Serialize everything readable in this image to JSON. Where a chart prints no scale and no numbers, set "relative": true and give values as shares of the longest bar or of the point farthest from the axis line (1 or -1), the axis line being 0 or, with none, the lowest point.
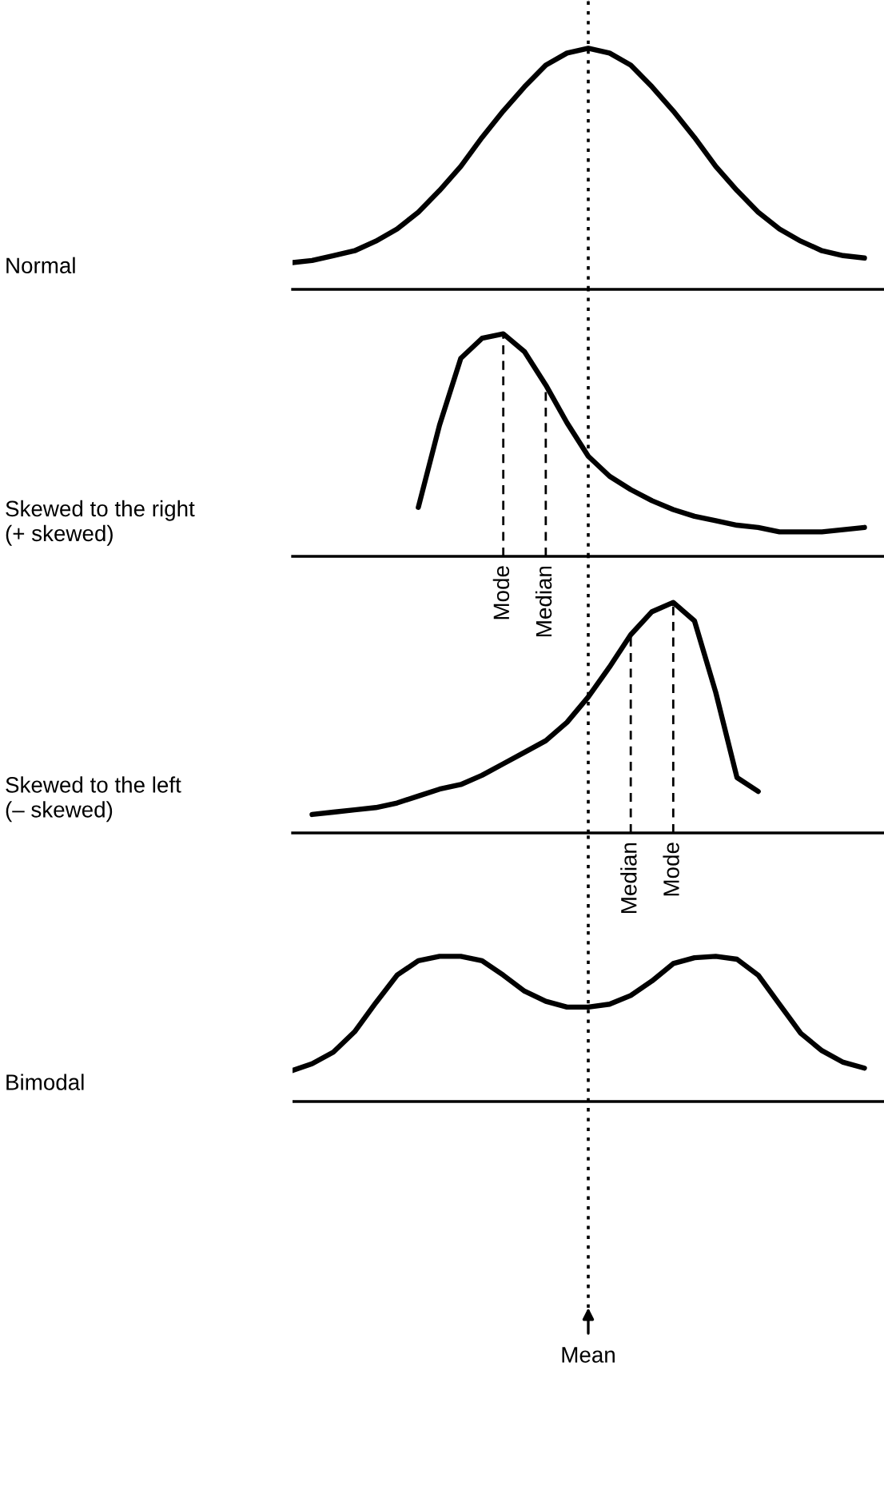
{
  "chart_data": [
    {
      "type": "line",
      "ylabel": "Normal",
      "relative": true,
      "line_style": "solid",
      "color": "#000000",
      "categories": [
        null,
        null,
        null,
        null,
        null,
        null,
        null,
        null,
        null,
        null,
        null,
        null,
        null,
        null,
        null,
        null,
        null,
        null,
        null,
        null,
        null,
        null,
        null,
        null,
        null,
        null,
        null,
        null
      ],
      "values": [
        0.11,
        0.12,
        0.14,
        0.16,
        0.2,
        0.25,
        0.32,
        0.41,
        0.51,
        0.63,
        0.74,
        0.84,
        0.93,
        0.98,
        1.0,
        0.98,
        0.93,
        0.84,
        0.74,
        0.63,
        0.51,
        0.41,
        0.32,
        0.25,
        0.2,
        0.16,
        0.14,
        0.13
      ]
    },
    {
      "type": "line",
      "ylabel": "Skewed to the right\n(+ skewed)",
      "relative": true,
      "line_style": "solid",
      "color": "#000000",
      "categories": [
        null,
        null,
        null,
        null,
        null,
        null,
        null,
        null,
        null,
        null,
        "Mode",
        null,
        "Median",
        null,
        null,
        null,
        null,
        null,
        null,
        null,
        null,
        null,
        null,
        null,
        null,
        null,
        null,
        null
      ],
      "values": [
        null,
        null,
        null,
        null,
        null,
        null,
        0.22,
        0.59,
        0.89,
        0.98,
        1.0,
        0.92,
        0.77,
        0.6,
        0.45,
        0.36,
        0.3,
        0.25,
        0.21,
        0.18,
        0.16,
        0.14,
        0.13,
        0.11,
        0.11,
        0.11,
        0.12,
        0.13
      ],
      "ref_lines": [
        {
          "axis": "x",
          "value": "Mode",
          "line_style": "dashed",
          "color": "#000000"
        },
        {
          "axis": "x",
          "value": "Median",
          "line_style": "dashed",
          "color": "#000000"
        }
      ]
    },
    {
      "type": "line",
      "ylabel": "Skewed to the left\n(– skewed)",
      "relative": true,
      "line_style": "solid",
      "color": "#000000",
      "categories": [
        null,
        null,
        null,
        null,
        null,
        null,
        null,
        null,
        null,
        null,
        null,
        null,
        null,
        null,
        null,
        null,
        "Median",
        null,
        "Mode",
        null,
        null,
        null,
        null,
        null,
        null,
        null,
        null,
        null
      ],
      "values": [
        null,
        0.08,
        0.09,
        0.1,
        0.11,
        0.13,
        0.16,
        0.19,
        0.21,
        0.25,
        0.3,
        0.35,
        0.4,
        0.48,
        0.59,
        0.72,
        0.86,
        0.96,
        1.0,
        0.92,
        0.61,
        0.24,
        0.18,
        null,
        null,
        null,
        null,
        null
      ],
      "ref_lines": [
        {
          "axis": "x",
          "value": "Median",
          "line_style": "dashed",
          "color": "#000000"
        },
        {
          "axis": "x",
          "value": "Mode",
          "line_style": "dashed",
          "color": "#000000"
        }
      ]
    },
    {
      "type": "line",
      "ylabel": "Bimodal",
      "relative": true,
      "line_style": "solid",
      "color": "#000000",
      "xlabel": "Mean",
      "categories": [
        null,
        null,
        null,
        null,
        null,
        null,
        null,
        null,
        null,
        null,
        null,
        null,
        null,
        null,
        null,
        null,
        null,
        null,
        null,
        null,
        null,
        null,
        null,
        null,
        null,
        null,
        null,
        null
      ],
      "values": [
        0.21,
        0.26,
        0.34,
        0.48,
        0.68,
        0.87,
        0.97,
        1.0,
        1.0,
        0.97,
        0.87,
        0.76,
        0.69,
        0.65,
        0.65,
        0.67,
        0.73,
        0.83,
        0.95,
        0.99,
        1.0,
        0.98,
        0.87,
        0.67,
        0.47,
        0.35,
        0.27,
        0.23
      ]
    }
  ]
}
